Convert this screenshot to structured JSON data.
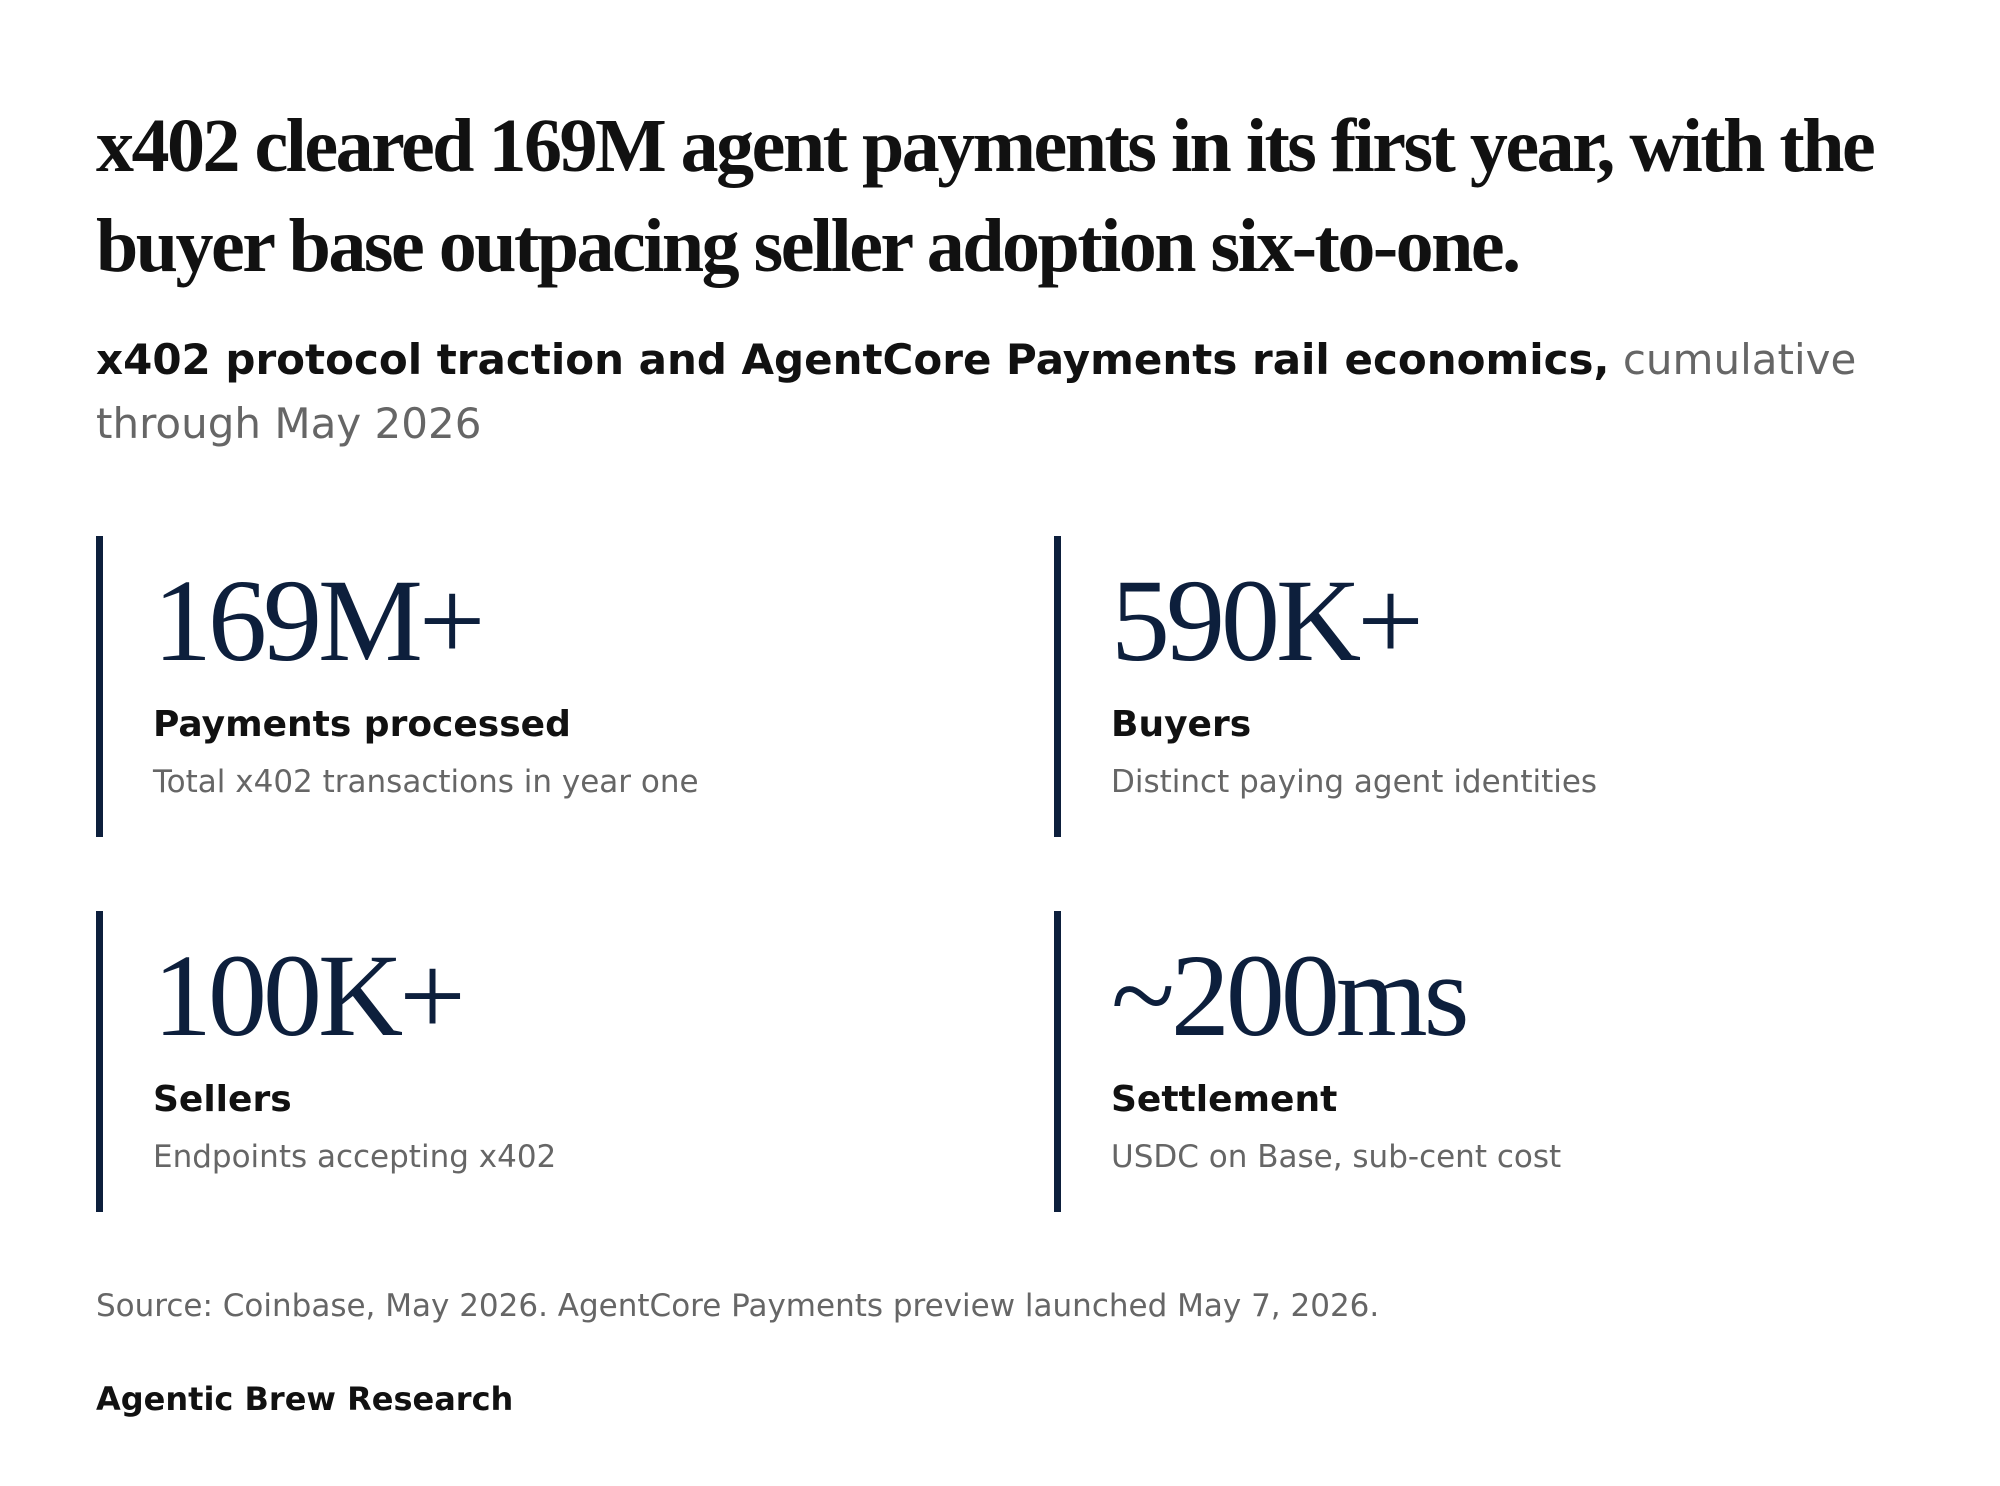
{
  "header": {
    "title": "x402 cleared 169M agent payments in its first year, with the buyer base outpacing seller adoption six-to-one.",
    "subtitle_bold": "x402 protocol traction and AgentCore Payments rail economics,",
    "subtitle_rest": "cumulative through May 2026"
  },
  "stats": [
    {
      "value": "169M+",
      "label": "Payments processed",
      "description": "Total x402 transactions in year one"
    },
    {
      "value": "590K+",
      "label": "Buyers",
      "description": "Distinct paying agent identities"
    },
    {
      "value": "100K+",
      "label": "Sellers",
      "description": "Endpoints accepting x402"
    },
    {
      "value": "~200ms",
      "label": "Settlement",
      "description": "USDC on Base, sub-cent cost"
    }
  ],
  "source": "Source: Coinbase, May 2026. AgentCore Payments preview launched May 7, 2026.",
  "footer": "Agentic Brew Research"
}
